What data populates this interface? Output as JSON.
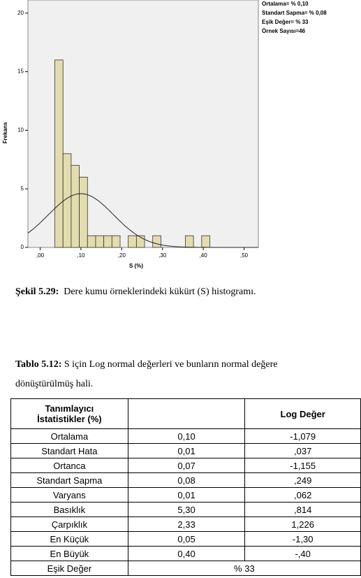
{
  "chart_data": {
    "type": "histogram",
    "x_label": "S (%)",
    "y_label": "Frekans",
    "bins": [
      0.036,
      0.056,
      0.076,
      0.096,
      0.116,
      0.136,
      0.156,
      0.176,
      0.196,
      0.216,
      0.236,
      0.256,
      0.276,
      0.296,
      0.316,
      0.336,
      0.356,
      0.376,
      0.396,
      0.416
    ],
    "values": [
      16,
      8,
      7,
      6,
      1,
      1,
      1,
      1,
      0,
      1,
      1,
      0,
      1,
      0,
      0,
      0,
      1,
      0,
      1
    ],
    "color": "#e3dcae",
    "xlim": [
      -0.03,
      0.535
    ],
    "ylim": [
      0,
      21
    ],
    "xticks": [
      {
        "value": 0,
        "label": ",00"
      },
      {
        "value": 0.1,
        "label": ",10"
      },
      {
        "value": 0.2,
        "label": ",20"
      },
      {
        "value": 0.3,
        "label": ",30"
      },
      {
        "value": 0.4,
        "label": ",40"
      },
      {
        "value": 0.5,
        "label": ",50"
      }
    ],
    "yticks": [
      0,
      5,
      10,
      15,
      20
    ],
    "fit": {
      "mean": 0.1,
      "sd": 0.08
    },
    "legend_lines": [
      "Ortalama= % 0,10",
      "Standart Sapma= % 0,08",
      "Eşik Değer= % 33",
      "Örnek Sayısı=46"
    ]
  },
  "figure_caption": {
    "label": "Şekil 5.29:",
    "text": "Dere kumu örneklerindeki kükürt (S) histogramı."
  },
  "table_caption": {
    "label": "Tablo 5.12:",
    "text": "S için Log normal değerleri ve bunların normal değere dönüştürülmüş hali."
  },
  "table": {
    "header": {
      "first": [
        "Tanımlayıcı",
        "İstatistikler (%)"
      ],
      "third": "Log Değer"
    },
    "rows": [
      [
        "Ortalama",
        "0,10",
        "-1,079"
      ],
      [
        "Standart Hata",
        "0,01",
        ",037"
      ],
      [
        "Ortanca",
        "0,07",
        "-1,155"
      ],
      [
        "Standart Sapma",
        "0,08",
        ",249"
      ],
      [
        "Varyans",
        "0,01",
        ",062"
      ],
      [
        "Basıklık",
        "5,30",
        ",814"
      ],
      [
        "Çarpıklık",
        "2,33",
        "1,226"
      ],
      [
        "En Küçük",
        "0,05",
        "-1,30"
      ],
      [
        "En Büyük",
        "0,40",
        "-,40"
      ]
    ],
    "last_row": [
      "Eşik Değer",
      "% 33"
    ]
  }
}
